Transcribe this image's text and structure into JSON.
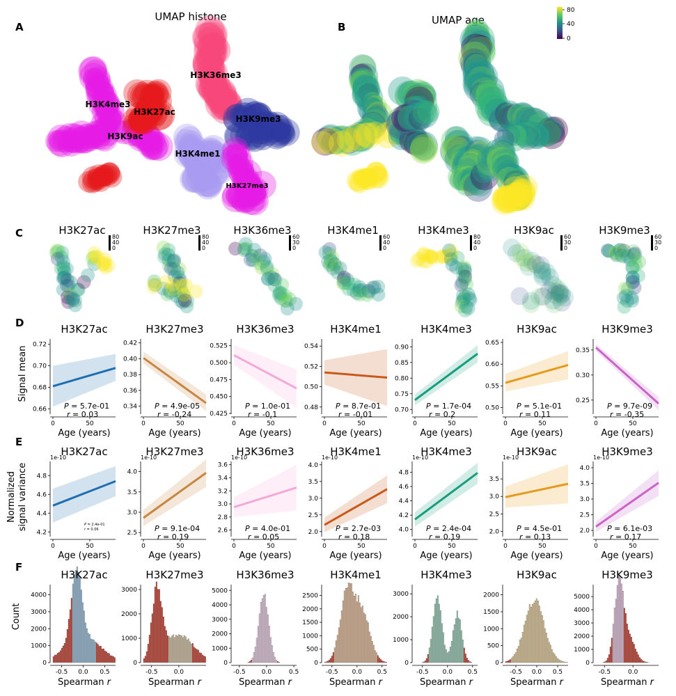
{
  "panel_letters": {
    "A": "A",
    "B": "B",
    "C": "C",
    "D": "D",
    "E": "E",
    "F": "F"
  },
  "umap_histone": {
    "title": "UMAP histone",
    "labels": [
      "H3K36me3",
      "H3K4me3",
      "H3K27ac",
      "H3K9me3",
      "H3K9ac",
      "H3K4me1",
      "H3K27me3"
    ],
    "colors": {
      "H3K27ac": "#e41a1c",
      "H3K4me3": "#e51de5",
      "H3K36me3": "#f7477a",
      "H3K9me3": "#2d3aa0",
      "H3K4me1": "#a89cf0",
      "H3K9ac": "#e51de5",
      "H3K27me3": "#e51de5"
    }
  },
  "umap_age": {
    "title": "UMAP age",
    "colorbar_ticks": [
      "80",
      "40",
      "0"
    ]
  },
  "small_umaps": {
    "titles": [
      "H3K27ac",
      "H3K27me3",
      "H3K36me3",
      "H3K4me1",
      "H3K4me3",
      "H3K9ac",
      "H3K9me3"
    ],
    "colorbar_ticks": [
      [
        "80",
        "40",
        "0"
      ],
      [
        "80",
        "40",
        "0"
      ],
      [
        "60",
        "30",
        "0"
      ],
      [
        "60",
        "40",
        "0"
      ],
      [
        "80",
        "40",
        "0"
      ],
      [
        "60",
        "30",
        "0"
      ],
      [
        "60",
        "30",
        "0"
      ]
    ]
  },
  "row_d": {
    "ylabel": "Signal mean",
    "xlabel": "Age (years)",
    "x_ticks": [
      "0",
      "50"
    ],
    "stat_p_prefix": "P",
    "stat_r_prefix": "r",
    "color_H3K27ac": "#1f6eb0"
  },
  "row_e": {
    "ylabel_line1": "Normalized",
    "ylabel_line2": "signal variance",
    "xlabel": "Age (years)",
    "x_ticks": [
      "0",
      "50"
    ],
    "sci_label": "1e-10"
  },
  "row_f": {
    "ylabel": "Count",
    "xlabel_main": "Spearman ",
    "xlabel_italic": "r"
  },
  "chart_data": [
    {
      "type": "line",
      "panel": "D",
      "name": "H3K27ac",
      "color": "#1f6eb0",
      "ylim": [
        0.655,
        0.725
      ],
      "yticks": [
        "0.66",
        "0.68",
        "0.70",
        "0.72"
      ],
      "ytick_vals": [
        0.66,
        0.68,
        0.7,
        0.72
      ],
      "x": [
        0,
        85
      ],
      "y": [
        0.681,
        0.698
      ],
      "ci_low": [
        0.662,
        0.686
      ],
      "ci_high": [
        0.7,
        0.711
      ],
      "p": "= 5.7e-01",
      "r": "= 0.03"
    },
    {
      "type": "line",
      "panel": "D",
      "name": "H3K27me3",
      "color": "#c68642",
      "ylim": [
        0.33,
        0.425
      ],
      "yticks": [
        "0.34",
        "0.36",
        "0.38",
        "0.40",
        "0.42"
      ],
      "ytick_vals": [
        0.34,
        0.36,
        0.38,
        0.4,
        0.42
      ],
      "x": [
        0,
        85
      ],
      "y": [
        0.401,
        0.344
      ],
      "ci_low": [
        0.394,
        0.334
      ],
      "ci_high": [
        0.409,
        0.355
      ],
      "p": "= 4.9e-05",
      "r": "= -0.24"
    },
    {
      "type": "line",
      "panel": "D",
      "name": "H3K36me3",
      "color": "#f4a8d8",
      "ylim": [
        0.424,
        0.535
      ],
      "yticks": [
        "0.425",
        "0.450",
        "0.475",
        "0.500",
        "0.525"
      ],
      "ytick_vals": [
        0.425,
        0.45,
        0.475,
        0.5,
        0.525
      ],
      "x": [
        0,
        85
      ],
      "y": [
        0.511,
        0.462
      ],
      "ci_low": [
        0.497,
        0.433
      ],
      "ci_high": [
        0.526,
        0.49
      ],
      "p": "= 1.0e-01",
      "r": "= -0.1"
    },
    {
      "type": "line",
      "panel": "D",
      "name": "H3K4me1",
      "color": "#c8591a",
      "ylim": [
        0.473,
        0.547
      ],
      "yticks": [
        "0.48",
        "0.50",
        "0.52",
        "0.54"
      ],
      "ytick_vals": [
        0.48,
        0.5,
        0.52,
        0.54
      ],
      "x": [
        0,
        85
      ],
      "y": [
        0.514,
        0.509
      ],
      "ci_low": [
        0.502,
        0.481
      ],
      "ci_high": [
        0.526,
        0.537
      ],
      "p": "= 8.7e-01",
      "r": "= -0.01"
    },
    {
      "type": "line",
      "panel": "D",
      "name": "H3K4me3",
      "color": "#179c7d",
      "ylim": [
        0.685,
        0.925
      ],
      "yticks": [
        "0.70",
        "0.75",
        "0.80",
        "0.85",
        "0.90"
      ],
      "ytick_vals": [
        0.7,
        0.75,
        0.8,
        0.85,
        0.9
      ],
      "x": [
        0,
        85
      ],
      "y": [
        0.73,
        0.878
      ],
      "ci_low": [
        0.713,
        0.85
      ],
      "ci_high": [
        0.748,
        0.905
      ],
      "p": "= 1.7e-04",
      "r": "= 0.2"
    },
    {
      "type": "line",
      "panel": "D",
      "name": "H3K9ac",
      "color": "#e59a1b",
      "ylim": [
        0.485,
        0.658
      ],
      "yticks": [
        "0.50",
        "0.55",
        "0.60",
        "0.65"
      ],
      "ytick_vals": [
        0.5,
        0.55,
        0.6,
        0.65
      ],
      "x": [
        0,
        85
      ],
      "y": [
        0.557,
        0.598
      ],
      "ci_low": [
        0.537,
        0.565
      ],
      "ci_high": [
        0.578,
        0.63
      ],
      "p": "= 5.1e-01",
      "r": "= 0.11"
    },
    {
      "type": "line",
      "panel": "D",
      "name": "H3K9me3",
      "color": "#c964c9",
      "ylim": [
        0.222,
        0.372
      ],
      "yticks": [
        "0.25",
        "0.30",
        "0.35"
      ],
      "ytick_vals": [
        0.25,
        0.3,
        0.35
      ],
      "x": [
        0,
        85
      ],
      "y": [
        0.355,
        0.243
      ],
      "ci_low": [
        0.348,
        0.23
      ],
      "ci_high": [
        0.362,
        0.256
      ],
      "p": "= 9.7e-09",
      "r": "= -0.35"
    },
    {
      "type": "line",
      "panel": "E",
      "name": "H3K27ac",
      "color": "#1f6eb0",
      "ylim": [
        4.15,
        4.95
      ],
      "yticks": [
        "4.2",
        "4.4",
        "4.6",
        "4.8"
      ],
      "ytick_vals": [
        4.2,
        4.4,
        4.6,
        4.8
      ],
      "x": [
        0,
        85
      ],
      "y": [
        4.48,
        4.74
      ],
      "ci_low": [
        4.3,
        4.58
      ],
      "ci_high": [
        4.66,
        4.9
      ],
      "p": "= 2.4e-01",
      "r": "= 0.06",
      "small": true
    },
    {
      "type": "line",
      "panel": "E",
      "name": "H3K27me3",
      "color": "#c68642",
      "ylim": [
        2.4,
        4.25
      ],
      "yticks": [
        "2.5",
        "3.0",
        "3.5",
        "4.0"
      ],
      "ytick_vals": [
        2.5,
        3.0,
        3.5,
        4.0
      ],
      "x": [
        0,
        85
      ],
      "y": [
        2.86,
        3.97
      ],
      "ci_low": [
        2.66,
        3.62
      ],
      "ci_high": [
        3.06,
        4.3
      ],
      "p": "= 9.1e-04",
      "r": "= 0.19"
    },
    {
      "type": "line",
      "panel": "E",
      "name": "H3K36me3",
      "color": "#f4a8d8",
      "ylim": [
        2.5,
        3.65
      ],
      "yticks": [
        "2.6",
        "2.8",
        "3.0",
        "3.2",
        "3.4",
        "3.6"
      ],
      "ytick_vals": [
        2.6,
        2.8,
        3.0,
        3.2,
        3.4,
        3.6
      ],
      "x": [
        0,
        85
      ],
      "y": [
        2.95,
        3.25
      ],
      "ci_low": [
        2.8,
        2.9
      ],
      "ci_high": [
        3.1,
        3.6
      ],
      "p": "= 4.0e-01",
      "r": "= 0.05"
    },
    {
      "type": "line",
      "panel": "E",
      "name": "H3K4me1",
      "color": "#c8591a",
      "ylim": [
        1.85,
        4.1
      ],
      "yticks": [
        "2.0",
        "2.5",
        "3.0",
        "3.5",
        "4.0"
      ],
      "ytick_vals": [
        2.0,
        2.5,
        3.0,
        3.5,
        4.0
      ],
      "x": [
        0,
        85
      ],
      "y": [
        2.2,
        3.27
      ],
      "ci_low": [
        1.98,
        2.85
      ],
      "ci_high": [
        2.42,
        3.68
      ],
      "p": "= 2.7e-03",
      "r": "= 0.18"
    },
    {
      "type": "line",
      "panel": "E",
      "name": "H3K4me3",
      "color": "#179c7d",
      "ylim": [
        3.9,
        4.95
      ],
      "yticks": [
        "4.0",
        "4.2",
        "4.4",
        "4.6",
        "4.8"
      ],
      "ytick_vals": [
        4.0,
        4.2,
        4.4,
        4.6,
        4.8
      ],
      "x": [
        0,
        85
      ],
      "y": [
        4.14,
        4.79
      ],
      "ci_low": [
        4.04,
        4.64
      ],
      "ci_high": [
        4.24,
        4.93
      ],
      "p": "= 2.4e-04",
      "r": "= 0.19"
    },
    {
      "type": "line",
      "panel": "E",
      "name": "H3K9ac",
      "color": "#e59a1b",
      "ylim": [
        1.85,
        4.0
      ],
      "yticks": [
        "2.0",
        "2.5",
        "3.0",
        "3.5"
      ],
      "ytick_vals": [
        2.0,
        2.5,
        3.0,
        3.5
      ],
      "x": [
        0,
        85
      ],
      "y": [
        2.98,
        3.36
      ],
      "ci_low": [
        2.68,
        2.8
      ],
      "ci_high": [
        3.28,
        3.92
      ],
      "p": "= 4.5e-01",
      "r": "= 0.13"
    },
    {
      "type": "line",
      "panel": "E",
      "name": "H3K9me3",
      "color": "#c964c9",
      "ylim": [
        1.8,
        4.2
      ],
      "yticks": [
        "2.0",
        "2.5",
        "3.0",
        "3.5",
        "4.0"
      ],
      "ytick_vals": [
        2.0,
        2.5,
        3.0,
        3.5,
        4.0
      ],
      "x": [
        0,
        85
      ],
      "y": [
        2.12,
        3.52
      ],
      "ci_low": [
        1.95,
        3.1
      ],
      "ci_high": [
        2.28,
        3.92
      ],
      "p": "= 6.1e-03",
      "r": "= 0.17"
    },
    {
      "type": "bar",
      "panel": "F",
      "name": "H3K27ac",
      "color": "#8fb3cf",
      "tail_color": "#c0392b",
      "xlim": [
        -0.7,
        0.75
      ],
      "xticks": [
        "-0.5",
        "0.0",
        "0.5"
      ],
      "xtick_vals": [
        -0.5,
        0,
        0.5
      ],
      "ylim": [
        0,
        4600
      ],
      "yticks": [
        "0",
        "1000",
        "2000",
        "3000",
        "4000"
      ],
      "ytick_vals": [
        0,
        1000,
        2000,
        3000,
        4000
      ],
      "peaks": [
        [
          -0.15,
          4050,
          0.12
        ],
        [
          0.0,
          1600,
          0.4
        ]
      ],
      "tails": [
        -0.25,
        0.3
      ]
    },
    {
      "type": "bar",
      "panel": "F",
      "name": "H3K27me3",
      "color": "#c9b79a",
      "tail_color": "#c0392b",
      "xlim": [
        -0.65,
        0.5
      ],
      "xticks": [
        "-0.5",
        "0.0"
      ],
      "xtick_vals": [
        -0.5,
        0
      ],
      "ylim": [
        0,
        3200
      ],
      "yticks": [
        "0",
        "1000",
        "2000",
        "3000"
      ],
      "ytick_vals": [
        0,
        1000,
        2000,
        3000
      ],
      "peaks": [
        [
          -0.4,
          2800,
          0.09
        ],
        [
          0.0,
          1150,
          0.28
        ]
      ],
      "tails": [
        -0.2,
        0.25
      ]
    },
    {
      "type": "bar",
      "panel": "F",
      "name": "H3K36me3",
      "color": "#dcc2d8",
      "tail_color": "#c0392b",
      "xlim": [
        -0.6,
        0.55
      ],
      "xticks": [
        "-0.5",
        "0.0",
        "0.5"
      ],
      "xtick_vals": [
        -0.5,
        0,
        0.5
      ],
      "ylim": [
        0,
        5400
      ],
      "yticks": [
        "0",
        "1000",
        "2000",
        "3000",
        "4000",
        "5000"
      ],
      "ytick_vals": [
        0,
        1000,
        2000,
        3000,
        4000,
        5000
      ],
      "peaks": [
        [
          -0.05,
          4850,
          0.09
        ]
      ],
      "tails": [
        -0.28,
        0.2
      ]
    },
    {
      "type": "bar",
      "panel": "F",
      "name": "H3K4me1",
      "color": "#d7b08e",
      "tail_color": "#c0392b",
      "xlim": [
        -0.65,
        0.6
      ],
      "xticks": [
        "-0.5",
        "0.0",
        "0.5"
      ],
      "xtick_vals": [
        -0.5,
        0,
        0.5
      ],
      "ylim": [
        0,
        2900
      ],
      "yticks": [
        "0",
        "500",
        "1000",
        "1500",
        "2000",
        "2500"
      ],
      "ytick_vals": [
        0,
        500,
        1000,
        1500,
        2000,
        2500
      ],
      "peaks": [
        [
          -0.2,
          2500,
          0.14
        ],
        [
          0.1,
          1900,
          0.16
        ]
      ],
      "tails": [
        -0.45,
        0.4
      ]
    },
    {
      "type": "bar",
      "panel": "F",
      "name": "H3K4me3",
      "color": "#8fc0ad",
      "tail_color": "#c0392b",
      "xlim": [
        -0.65,
        0.6
      ],
      "xticks": [
        "-0.5",
        "0.0",
        "0.5"
      ],
      "xtick_vals": [
        -0.5,
        0,
        0.5
      ],
      "ylim": [
        0,
        3400
      ],
      "yticks": [
        "0",
        "1000",
        "2000",
        "3000"
      ],
      "ytick_vals": [
        0,
        1000,
        2000,
        3000
      ],
      "peaks": [
        [
          -0.2,
          3000,
          0.09
        ],
        [
          0.2,
          2150,
          0.09
        ]
      ],
      "tails": [
        -0.38,
        0.33
      ]
    },
    {
      "type": "bar",
      "panel": "F",
      "name": "H3K9ac",
      "color": "#d8c08f",
      "tail_color": "#c0392b",
      "xlim": [
        -0.75,
        0.75
      ],
      "xticks": [
        "-0.5",
        "0.0",
        "0.5"
      ],
      "xtick_vals": [
        -0.5,
        0,
        0.5
      ],
      "ylim": [
        0,
        2300
      ],
      "yticks": [
        "0",
        "500",
        "1000",
        "1500",
        "2000"
      ],
      "ytick_vals": [
        0,
        500,
        1000,
        1500,
        2000
      ],
      "peaks": [
        [
          -0.05,
          1850,
          0.24
        ]
      ],
      "tails": [
        -0.6,
        0.7
      ]
    },
    {
      "type": "bar",
      "panel": "F",
      "name": "H3K9me3",
      "color": "#d8b8d4",
      "tail_color": "#c0392b",
      "xlim": [
        -0.65,
        0.45
      ],
      "xticks": [
        "-0.5",
        "0.0"
      ],
      "xtick_vals": [
        -0.5,
        0
      ],
      "ylim": [
        0,
        5900
      ],
      "yticks": [
        "0",
        "1000",
        "2000",
        "3000",
        "4000",
        "5000"
      ],
      "ytick_vals": [
        0,
        1000,
        2000,
        3000,
        4000,
        5000
      ],
      "peaks": [
        [
          -0.25,
          5200,
          0.08
        ],
        [
          -0.1,
          2200,
          0.12
        ]
      ],
      "tails": [
        -0.35,
        -0.15
      ]
    }
  ]
}
